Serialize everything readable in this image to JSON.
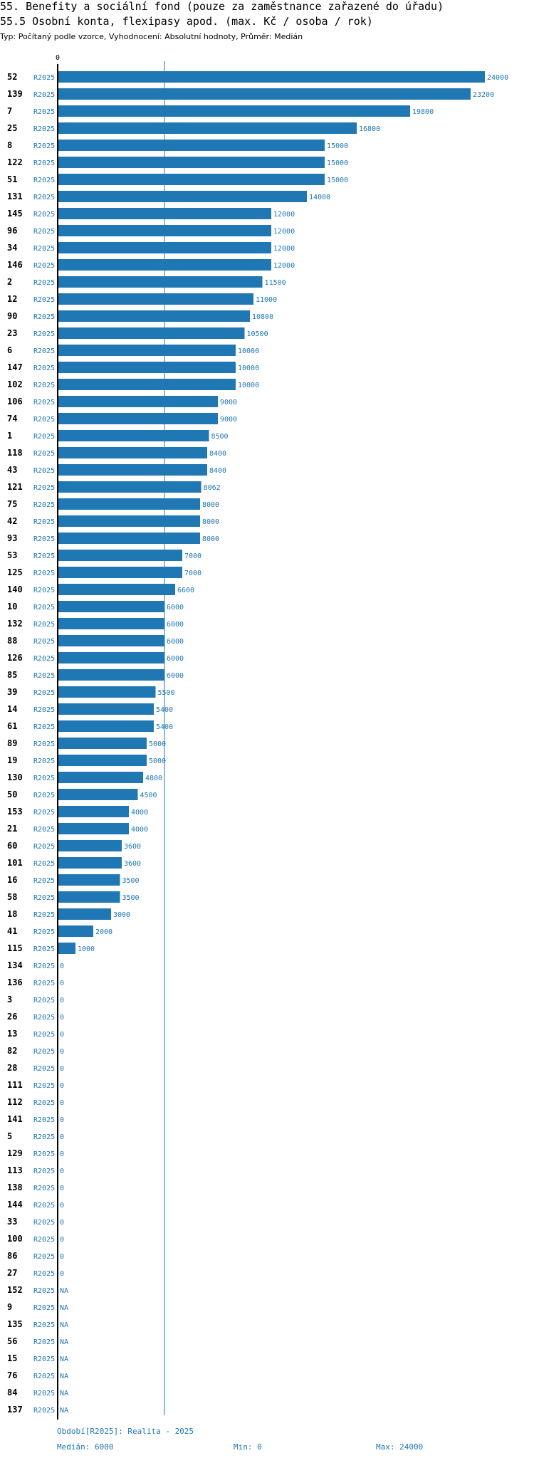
{
  "title_main": "55. Benefity a sociální fond (pouze za zaměstnance zařazené do úřadu)",
  "title_sub": "55.5 Osobní konta, flexipasy apod. (max. Kč / osoba / rok)",
  "subtitle": "Typ: Počítaný podle vzorce, Vyhodnocení: Absolutní hodnoty, Průměr: Medián",
  "footer": {
    "period": "Období[R2025]: Realita - 2025",
    "median": "Medián: 6000",
    "min": "Min: 0",
    "max": "Max: 24000"
  },
  "colors": {
    "bar": "#1f77b4",
    "axis": "#000000",
    "median_line": "#1f77b4"
  },
  "chart_data": {
    "type": "bar",
    "orientation": "horizontal",
    "series_label": "R2025",
    "xlim": [
      0,
      24000
    ],
    "x_tick_label": "0",
    "median": 6000,
    "rows": [
      {
        "id": "52",
        "value": 24000,
        "label": "24000"
      },
      {
        "id": "139",
        "value": 23200,
        "label": "23200"
      },
      {
        "id": "7",
        "value": 19800,
        "label": "19800"
      },
      {
        "id": "25",
        "value": 16800,
        "label": "16800"
      },
      {
        "id": "8",
        "value": 15000,
        "label": "15000"
      },
      {
        "id": "122",
        "value": 15000,
        "label": "15000"
      },
      {
        "id": "51",
        "value": 15000,
        "label": "15000"
      },
      {
        "id": "131",
        "value": 14000,
        "label": "14000"
      },
      {
        "id": "145",
        "value": 12000,
        "label": "12000"
      },
      {
        "id": "96",
        "value": 12000,
        "label": "12000"
      },
      {
        "id": "34",
        "value": 12000,
        "label": "12000"
      },
      {
        "id": "146",
        "value": 12000,
        "label": "12000"
      },
      {
        "id": "2",
        "value": 11500,
        "label": "11500"
      },
      {
        "id": "12",
        "value": 11000,
        "label": "11000"
      },
      {
        "id": "90",
        "value": 10800,
        "label": "10800"
      },
      {
        "id": "23",
        "value": 10500,
        "label": "10500"
      },
      {
        "id": "6",
        "value": 10000,
        "label": "10000"
      },
      {
        "id": "147",
        "value": 10000,
        "label": "10000"
      },
      {
        "id": "102",
        "value": 10000,
        "label": "10000"
      },
      {
        "id": "106",
        "value": 9000,
        "label": "9000"
      },
      {
        "id": "74",
        "value": 9000,
        "label": "9000"
      },
      {
        "id": "1",
        "value": 8500,
        "label": "8500"
      },
      {
        "id": "118",
        "value": 8400,
        "label": "8400"
      },
      {
        "id": "43",
        "value": 8400,
        "label": "8400"
      },
      {
        "id": "121",
        "value": 8062,
        "label": "8062"
      },
      {
        "id": "75",
        "value": 8000,
        "label": "8000"
      },
      {
        "id": "42",
        "value": 8000,
        "label": "8000"
      },
      {
        "id": "93",
        "value": 8000,
        "label": "8000"
      },
      {
        "id": "53",
        "value": 7000,
        "label": "7000"
      },
      {
        "id": "125",
        "value": 7000,
        "label": "7000"
      },
      {
        "id": "140",
        "value": 6600,
        "label": "6600"
      },
      {
        "id": "10",
        "value": 6000,
        "label": "6000"
      },
      {
        "id": "132",
        "value": 6000,
        "label": "6000"
      },
      {
        "id": "88",
        "value": 6000,
        "label": "6000"
      },
      {
        "id": "126",
        "value": 6000,
        "label": "6000"
      },
      {
        "id": "85",
        "value": 6000,
        "label": "6000"
      },
      {
        "id": "39",
        "value": 5500,
        "label": "5500"
      },
      {
        "id": "14",
        "value": 5400,
        "label": "5400"
      },
      {
        "id": "61",
        "value": 5400,
        "label": "5400"
      },
      {
        "id": "89",
        "value": 5000,
        "label": "5000"
      },
      {
        "id": "19",
        "value": 5000,
        "label": "5000"
      },
      {
        "id": "130",
        "value": 4800,
        "label": "4800"
      },
      {
        "id": "50",
        "value": 4500,
        "label": "4500"
      },
      {
        "id": "153",
        "value": 4000,
        "label": "4000"
      },
      {
        "id": "21",
        "value": 4000,
        "label": "4000"
      },
      {
        "id": "60",
        "value": 3600,
        "label": "3600"
      },
      {
        "id": "101",
        "value": 3600,
        "label": "3600"
      },
      {
        "id": "16",
        "value": 3500,
        "label": "3500"
      },
      {
        "id": "58",
        "value": 3500,
        "label": "3500"
      },
      {
        "id": "18",
        "value": 3000,
        "label": "3000"
      },
      {
        "id": "41",
        "value": 2000,
        "label": "2000"
      },
      {
        "id": "115",
        "value": 1000,
        "label": "1000"
      },
      {
        "id": "134",
        "value": 0,
        "label": "0"
      },
      {
        "id": "136",
        "value": 0,
        "label": "0"
      },
      {
        "id": "3",
        "value": 0,
        "label": "0"
      },
      {
        "id": "26",
        "value": 0,
        "label": "0"
      },
      {
        "id": "13",
        "value": 0,
        "label": "0"
      },
      {
        "id": "82",
        "value": 0,
        "label": "0"
      },
      {
        "id": "28",
        "value": 0,
        "label": "0"
      },
      {
        "id": "111",
        "value": 0,
        "label": "0"
      },
      {
        "id": "112",
        "value": 0,
        "label": "0"
      },
      {
        "id": "141",
        "value": 0,
        "label": "0"
      },
      {
        "id": "5",
        "value": 0,
        "label": "0"
      },
      {
        "id": "129",
        "value": 0,
        "label": "0"
      },
      {
        "id": "113",
        "value": 0,
        "label": "0"
      },
      {
        "id": "138",
        "value": 0,
        "label": "0"
      },
      {
        "id": "144",
        "value": 0,
        "label": "0"
      },
      {
        "id": "33",
        "value": 0,
        "label": "0"
      },
      {
        "id": "100",
        "value": 0,
        "label": "0"
      },
      {
        "id": "86",
        "value": 0,
        "label": "0"
      },
      {
        "id": "27",
        "value": 0,
        "label": "0"
      },
      {
        "id": "152",
        "value": null,
        "label": "NA"
      },
      {
        "id": "9",
        "value": null,
        "label": "NA"
      },
      {
        "id": "135",
        "value": null,
        "label": "NA"
      },
      {
        "id": "56",
        "value": null,
        "label": "NA"
      },
      {
        "id": "15",
        "value": null,
        "label": "NA"
      },
      {
        "id": "76",
        "value": null,
        "label": "NA"
      },
      {
        "id": "84",
        "value": null,
        "label": "NA"
      },
      {
        "id": "137",
        "value": null,
        "label": "NA"
      }
    ]
  }
}
